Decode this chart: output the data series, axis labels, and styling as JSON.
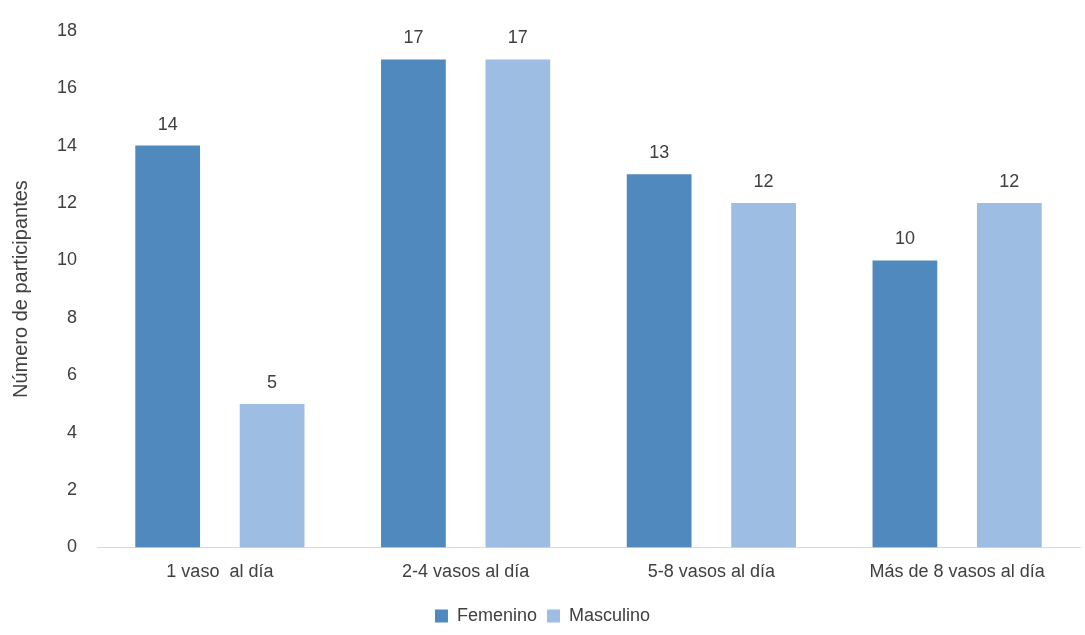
{
  "chart_data": {
    "type": "bar",
    "ylabel": "Número de participantes",
    "categories": [
      "1 vaso  al día",
      "2-4 vasos al día",
      "5-8 vasos al día",
      "Más de 8 vasos al día"
    ],
    "series": [
      {
        "name": "Femenino",
        "color": "#4f89bd",
        "values": [
          14,
          17,
          13,
          10
        ]
      },
      {
        "name": "Masculino",
        "color": "#9dbde2",
        "values": [
          5,
          17,
          12,
          12
        ]
      }
    ],
    "ylim": [
      0,
      18
    ],
    "yticks": [
      0,
      2,
      4,
      6,
      8,
      10,
      12,
      14,
      16,
      18
    ],
    "grid": false,
    "legend": "bottom",
    "data_labels": true
  }
}
